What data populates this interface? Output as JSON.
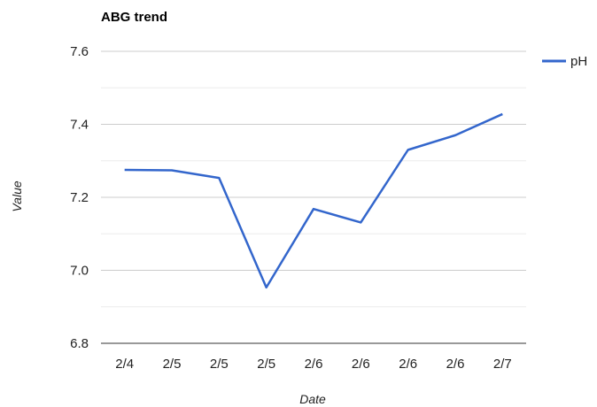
{
  "chart_data": {
    "type": "line",
    "title": "ABG trend",
    "xlabel": "Date",
    "ylabel": "Value",
    "categories": [
      "2/4",
      "2/5",
      "2/5",
      "2/5",
      "2/6",
      "2/6",
      "2/6",
      "2/6",
      "2/7"
    ],
    "series": [
      {
        "name": "pH",
        "color": "#3366cc",
        "values": [
          7.275,
          7.274,
          7.253,
          6.953,
          7.168,
          7.131,
          7.33,
          7.37,
          7.428
        ]
      }
    ],
    "ylim": [
      6.8,
      7.6
    ],
    "yticks": [
      "6.8",
      "7.0",
      "7.2",
      "7.4",
      "7.6"
    ],
    "grid": true,
    "legend_position": "right"
  }
}
